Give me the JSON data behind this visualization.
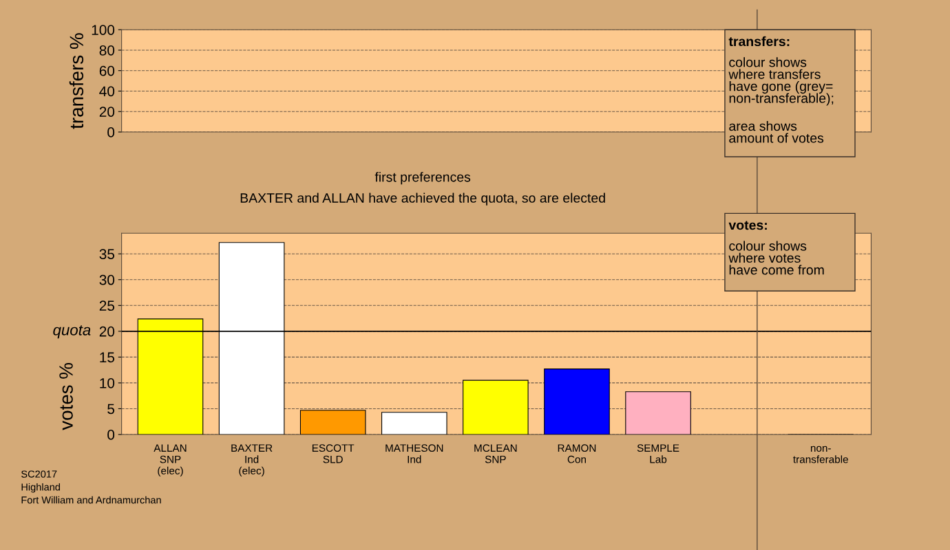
{
  "chart_data": [
    {
      "type": "bar",
      "ylabel": "transfers %",
      "categories": [
        null,
        null,
        null,
        null,
        null,
        null,
        null,
        null,
        null
      ],
      "values": [
        null,
        null,
        null,
        null,
        null,
        null,
        null,
        null,
        null
      ],
      "ylim": [
        0,
        100
      ],
      "yticks": [
        0,
        20,
        40,
        60,
        80,
        100
      ],
      "grid": "y",
      "tick_labels": "y",
      "annotations": [
        "transfers:",
        "colour shows\nwhere transfers\nhave gone (grey=\nnon-transferable);",
        "area shows\namount of votes"
      ]
    },
    {
      "type": "bar",
      "title": "first preferences",
      "subtitle": "BAXTER and ALLAN have achieved the quota, so are elected",
      "ylabel": "votes %",
      "categories": [
        "ALLAN\nSNP\n(elec)",
        "BAXTER\nInd\n(elec)",
        "ESCOTT\nSLD",
        "MATHESON\nInd",
        "MCLEAN\nSNP",
        "RAMON\nCon",
        "SEMPLE\nLab",
        null,
        "non-\ntransferable"
      ],
      "values": [
        22.4,
        37.2,
        4.7,
        4.3,
        10.5,
        12.7,
        8.3,
        null,
        0
      ],
      "colors": [
        "#ffff00",
        "#ffffff",
        "#ff9900",
        "#ffffff",
        "#ffff00",
        "#0000ff",
        "#ffb0c0",
        "#ffffff",
        "#000000"
      ],
      "ylim": [
        0,
        39
      ],
      "yticks": [
        0,
        5,
        10,
        15,
        20,
        25,
        30,
        35
      ],
      "grid": "y",
      "ref_lines": [
        {
          "axis": "y",
          "value": 20,
          "label": "quota",
          "color": "#000000",
          "line_style": "solid"
        }
      ],
      "annotations": [
        "votes:",
        "colour shows\nwhere votes\nhave come from",
        "SC2017\nHighland\nFort William and Ardnamurchan"
      ]
    }
  ]
}
